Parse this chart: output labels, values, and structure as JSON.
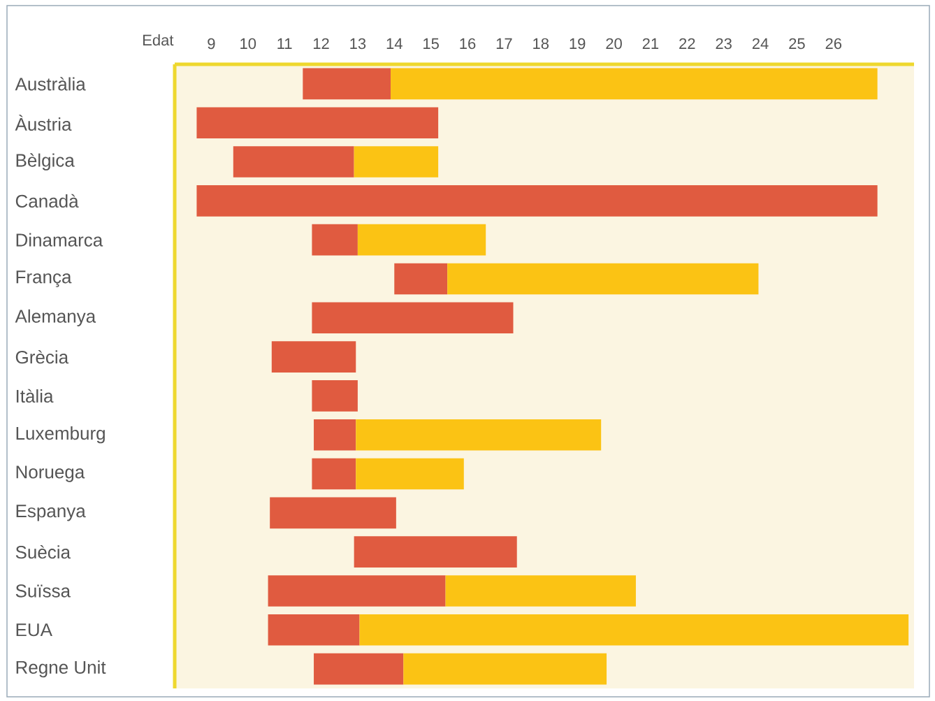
{
  "chart_data": {
    "type": "bar",
    "orientation": "horizontal",
    "xlabel": "Edat",
    "categories": [
      "Austràlia",
      "Àustria",
      "Bèlgica",
      "Canadà",
      "Dinamarca",
      "França",
      "Alemanya",
      "Grècia",
      "Itàlia",
      "Luxemburg",
      "Noruega",
      "Espanya",
      "Suècia",
      "Suïssa",
      "EUA",
      "Regne Unit"
    ],
    "series": [
      {
        "color": "#e05b40",
        "base": [
          11.5,
          8.6,
          9.6,
          8.6,
          11.75,
          14.0,
          11.75,
          10.65,
          11.75,
          11.8,
          11.75,
          10.6,
          12.9,
          10.55,
          10.55,
          11.8
        ],
        "values": [
          2.4,
          6.6,
          3.3,
          18.6,
          1.25,
          1.45,
          5.5,
          2.3,
          1.25,
          1.15,
          1.2,
          3.45,
          4.45,
          4.85,
          2.5,
          2.45
        ]
      },
      {
        "color": "#fbc314",
        "base": [
          13.9,
          null,
          12.9,
          null,
          13.0,
          15.45,
          null,
          null,
          null,
          12.95,
          12.95,
          null,
          null,
          15.4,
          13.05,
          14.25
        ],
        "values": [
          13.3,
          null,
          2.3,
          null,
          3.5,
          8.5,
          null,
          null,
          null,
          6.7,
          2.95,
          null,
          null,
          5.2,
          15.0,
          5.55
        ]
      }
    ],
    "xlim": [
      8,
      28.2
    ],
    "xticks": [
      9,
      10,
      11,
      12,
      13,
      14,
      15,
      16,
      17,
      18,
      19,
      20,
      21,
      22,
      23,
      24,
      25,
      26
    ]
  }
}
